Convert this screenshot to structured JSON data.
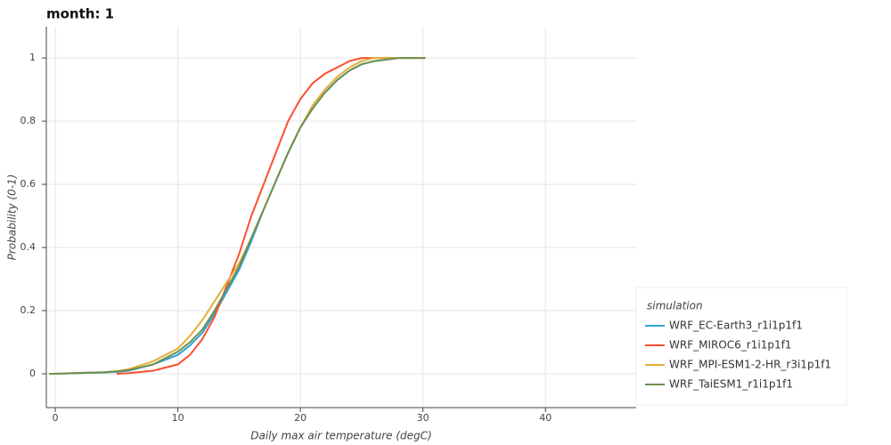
{
  "chart_data": {
    "type": "line",
    "title": "month: 1",
    "x_label": "Daily max air temperature (degC)",
    "y_label": "Probability (0-1)",
    "legend_title": "simulation",
    "legend_position": "right",
    "x": [
      -0.5,
      0,
      2,
      4,
      5,
      6,
      8,
      10,
      11,
      12,
      13,
      14,
      15,
      16,
      17,
      18,
      19,
      20,
      21,
      22,
      23,
      24,
      25,
      26,
      28,
      30.2
    ],
    "series": [
      {
        "name": "WRF_EC-Earth3_r1i1p1f1",
        "color": "#30a2da",
        "values": [
          0,
          0,
          0.002,
          0.004,
          0.006,
          0.01,
          0.03,
          0.06,
          0.09,
          0.13,
          0.19,
          0.26,
          0.33,
          0.42,
          0.52,
          0.61,
          0.7,
          0.78,
          0.84,
          0.89,
          0.93,
          0.96,
          0.98,
          0.99,
          1,
          1
        ]
      },
      {
        "name": "WRF_MIROC6_r1i1p1f1",
        "color": "#fc4f30",
        "values": [
          null,
          null,
          null,
          null,
          0,
          0.002,
          0.01,
          0.03,
          0.06,
          0.11,
          0.18,
          0.28,
          0.38,
          0.5,
          0.6,
          0.7,
          0.8,
          0.87,
          0.92,
          0.95,
          0.97,
          0.99,
          1,
          1,
          1,
          1
        ]
      },
      {
        "name": "WRF_MPI-ESM1-2-HR_r3i1p1f1",
        "color": "#e5ae38",
        "values": [
          0,
          0,
          0.003,
          0.005,
          0.008,
          0.015,
          0.04,
          0.08,
          0.12,
          0.17,
          0.23,
          0.29,
          0.35,
          0.43,
          0.52,
          0.61,
          0.7,
          0.78,
          0.85,
          0.9,
          0.94,
          0.97,
          0.99,
          1,
          1,
          1
        ]
      },
      {
        "name": "WRF_TaiESM1_r1i1p1f1",
        "color": "#6d904f",
        "values": [
          0,
          0,
          0.003,
          0.005,
          0.008,
          0.012,
          0.03,
          0.07,
          0.1,
          0.14,
          0.2,
          0.27,
          0.34,
          0.43,
          0.52,
          0.61,
          0.7,
          0.78,
          0.84,
          0.89,
          0.93,
          0.96,
          0.98,
          0.99,
          1,
          1
        ]
      }
    ],
    "xlim": [
      -0.73,
      47.4
    ],
    "ylim": [
      -0.107,
      1.099
    ],
    "xticks": [
      0,
      10,
      20,
      30,
      40
    ],
    "yticks": [
      0,
      0.2,
      0.4,
      0.6,
      0.8,
      1
    ],
    "grid": true
  }
}
